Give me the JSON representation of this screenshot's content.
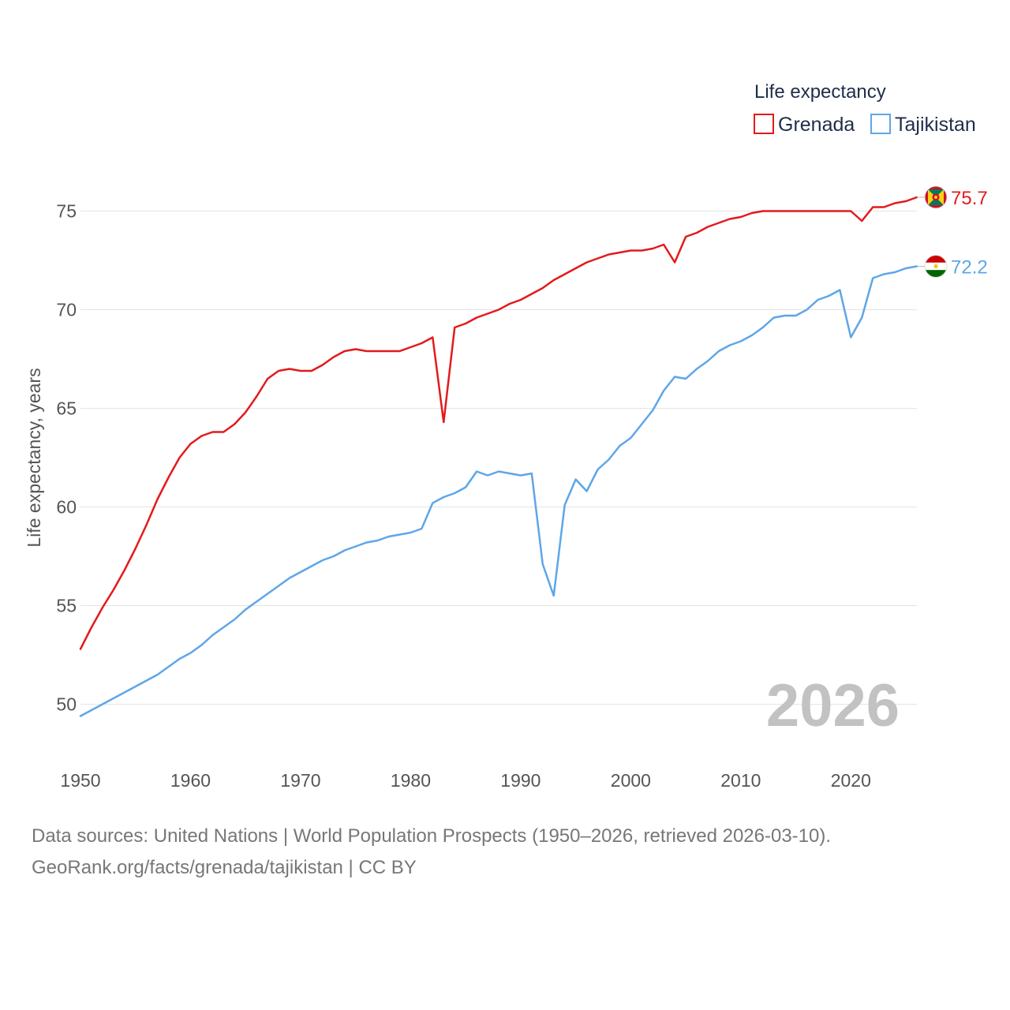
{
  "chart_data": {
    "type": "line",
    "title": "",
    "xlabel": "",
    "ylabel": "Life expectancy, years",
    "xlim": [
      1950,
      2026
    ],
    "ylim": [
      47.5,
      77.5
    ],
    "xticks": [
      "1950",
      "1960",
      "1970",
      "1980",
      "1990",
      "2000",
      "2010",
      "2020"
    ],
    "yticks": [
      "50",
      "55",
      "60",
      "65",
      "70",
      "75"
    ],
    "grid": true,
    "legend": {
      "title": "Life expectancy",
      "position": "top-right"
    },
    "annotation": "2026",
    "x": [
      1950,
      1951,
      1952,
      1953,
      1954,
      1955,
      1956,
      1957,
      1958,
      1959,
      1960,
      1961,
      1962,
      1963,
      1964,
      1965,
      1966,
      1967,
      1968,
      1969,
      1970,
      1971,
      1972,
      1973,
      1974,
      1975,
      1976,
      1977,
      1978,
      1979,
      1980,
      1981,
      1982,
      1983,
      1984,
      1985,
      1986,
      1987,
      1988,
      1989,
      1990,
      1991,
      1992,
      1993,
      1994,
      1995,
      1996,
      1997,
      1998,
      1999,
      2000,
      2001,
      2002,
      2003,
      2004,
      2005,
      2006,
      2007,
      2008,
      2009,
      2010,
      2011,
      2012,
      2013,
      2014,
      2015,
      2016,
      2017,
      2018,
      2019,
      2020,
      2021,
      2022,
      2023,
      2024,
      2025,
      2026
    ],
    "series": [
      {
        "name": "Grenada",
        "color": "#e31a1c",
        "end_label": "75.7",
        "flag": "grenada-flag",
        "values": [
          52.8,
          53.9,
          54.9,
          55.8,
          56.8,
          57.9,
          59.1,
          60.4,
          61.5,
          62.5,
          63.2,
          63.6,
          63.8,
          63.8,
          64.2,
          64.8,
          65.6,
          66.5,
          66.9,
          67.0,
          66.9,
          66.9,
          67.2,
          67.6,
          67.9,
          68.0,
          67.9,
          67.9,
          67.9,
          67.9,
          68.1,
          68.3,
          68.6,
          64.3,
          69.1,
          69.3,
          69.6,
          69.8,
          70.0,
          70.3,
          70.5,
          70.8,
          71.1,
          71.5,
          71.8,
          72.1,
          72.4,
          72.6,
          72.8,
          72.9,
          73.0,
          73.0,
          73.1,
          73.3,
          72.4,
          73.7,
          73.9,
          74.2,
          74.4,
          74.6,
          74.7,
          74.9,
          75.0,
          75.0,
          75.0,
          75.0,
          75.0,
          75.0,
          75.0,
          75.0,
          75.0,
          74.5,
          75.2,
          75.2,
          75.4,
          75.5,
          75.7
        ]
      },
      {
        "name": "Tajikistan",
        "color": "#5ea6e8",
        "end_label": "72.2",
        "flag": "tajikistan-flag",
        "values": [
          49.4,
          49.7,
          50.0,
          50.3,
          50.6,
          50.9,
          51.2,
          51.5,
          51.9,
          52.3,
          52.6,
          53.0,
          53.5,
          53.9,
          54.3,
          54.8,
          55.2,
          55.6,
          56.0,
          56.4,
          56.7,
          57.0,
          57.3,
          57.5,
          57.8,
          58.0,
          58.2,
          58.3,
          58.5,
          58.6,
          58.7,
          58.9,
          60.2,
          60.5,
          60.7,
          61.0,
          61.8,
          61.6,
          61.8,
          61.7,
          61.6,
          61.7,
          57.1,
          55.5,
          60.1,
          61.4,
          60.8,
          61.9,
          62.4,
          63.1,
          63.5,
          64.2,
          64.9,
          65.9,
          66.6,
          66.5,
          67.0,
          67.4,
          67.9,
          68.2,
          68.4,
          68.7,
          69.1,
          69.6,
          69.7,
          69.7,
          70.0,
          70.5,
          70.7,
          71.0,
          68.6,
          69.6,
          71.6,
          71.8,
          71.9,
          72.1,
          72.2
        ]
      }
    ]
  },
  "footer": {
    "line1": "Data sources: United Nations | World Population Prospects (1950–2026, retrieved 2026-03-10).",
    "line2": "GeoRank.org/facts/grenada/tajikistan | CC BY"
  }
}
